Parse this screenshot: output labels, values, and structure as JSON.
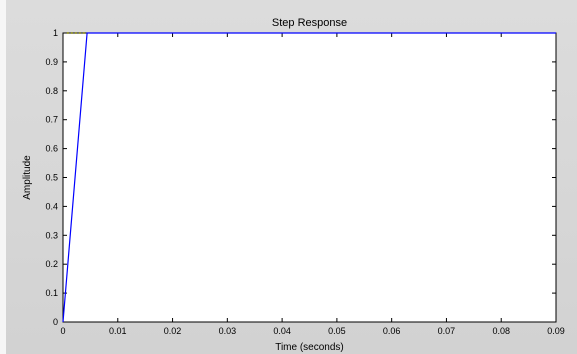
{
  "chart_data": {
    "type": "line",
    "title": "Step Response",
    "xlabel": "Time (seconds)",
    "ylabel": "Amplitude",
    "xlim": [
      0,
      0.09
    ],
    "ylim": [
      0,
      1
    ],
    "x_ticks": [
      "0",
      "0.01",
      "0.02",
      "0.03",
      "0.04",
      "0.05",
      "0.06",
      "0.07",
      "0.08",
      "0.09"
    ],
    "y_ticks": [
      "0",
      "0.1",
      "0.2",
      "0.3",
      "0.4",
      "0.5",
      "0.6",
      "0.7",
      "0.8",
      "0.9",
      "1"
    ],
    "grid": false,
    "legend": "none",
    "series": [
      {
        "color": "#0000ff",
        "x": [
          0,
          0.0044,
          0.09
        ],
        "y": [
          0,
          1,
          1
        ]
      }
    ],
    "annotations": [
      {
        "color": "#808000",
        "style": "dotted",
        "x": [
          0.0007,
          0.004
        ],
        "y": [
          1,
          1
        ]
      }
    ]
  }
}
